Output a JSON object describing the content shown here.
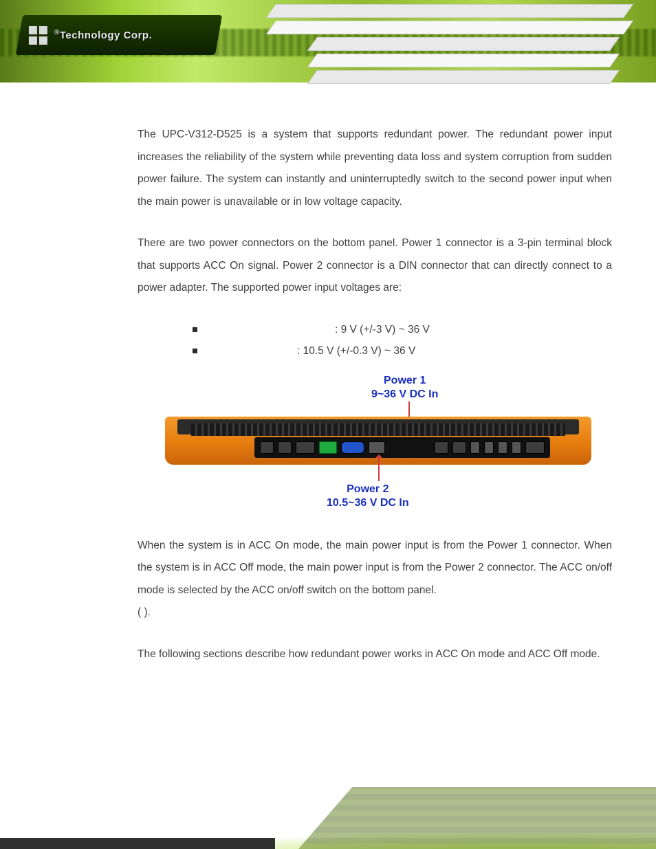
{
  "logo": {
    "prefix_symbol": "®",
    "text": "Technology Corp."
  },
  "paragraphs": {
    "p1": "The UPC-V312-D525 is a system that supports redundant power. The redundant power input increases the reliability of the system while preventing data loss and system corruption from sudden power failure. The system can instantly and uninterruptedly switch to the second power input when the main power is unavailable or in low voltage capacity.",
    "p2": "There are two power connectors on the bottom panel. Power 1 connector is a 3-pin terminal block that supports ACC On signal. Power 2 connector is a DIN connector that can directly connect to a power adapter. The supported power input voltages are:",
    "p3_a": "When the system is in ACC On mode, the main power input is from the Power 1 connector. When the system is in ACC Off mode, the main power input is from the Power 2 connector. The ACC on/off mode is selected by the ACC on/off switch on the bottom panel.",
    "p3_b": "(                    ).",
    "p4": "The following sections describe how redundant power works in ACC On mode and ACC Off mode."
  },
  "bullets": [
    {
      "value": ": 9 V (+/-3 V) ~ 36 V"
    },
    {
      "value": ": 10.5 V (+/-0.3 V) ~ 36 V"
    }
  ],
  "figure": {
    "power1": {
      "line1": "Power 1",
      "line2": "9~36 V DC In"
    },
    "power2": {
      "line1": "Power 2",
      "line2": "10.5~36 V DC In"
    },
    "label_color": "#1a2fbd",
    "leader_color": "#d23a3a",
    "device_body_color": "#e77d0e",
    "terminal_green": "#1faa3d"
  },
  "colors": {
    "text": "#3f3f3f",
    "banner_green": "#9fd335",
    "banner_green_dark": "#5a7a1a"
  }
}
